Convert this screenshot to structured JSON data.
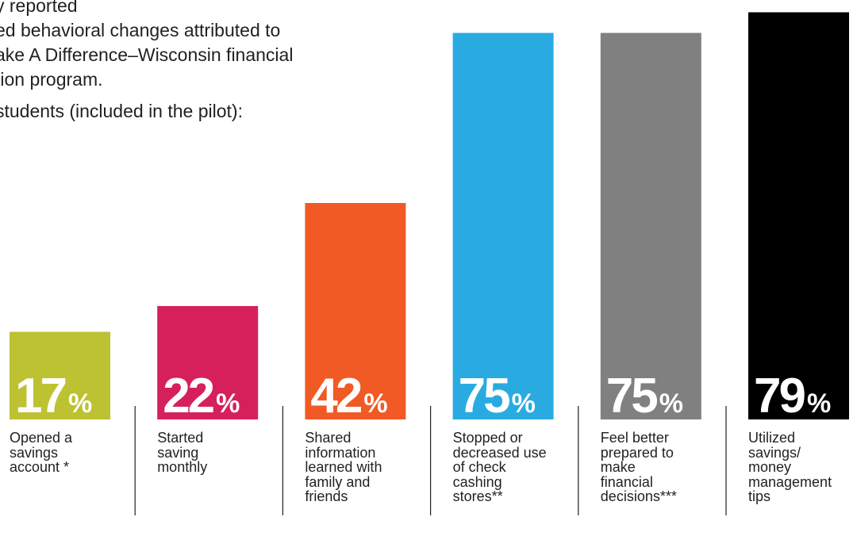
{
  "intro": {
    "heading_lines": [
      "y reported",
      "ed behavioral changes attributed to",
      "ake A Difference–Wisconsin financial",
      "tion program."
    ],
    "subheading": "students (included in the pilot):"
  },
  "chart_data": {
    "type": "bar",
    "title": "",
    "xlabel": "",
    "ylabel": "",
    "ylim": [
      0,
      80
    ],
    "grid": false,
    "value_suffix": "%",
    "categories": [
      "Opened a\nsavings\naccount *",
      "Started\nsaving\nmonthly",
      "Shared\ninformation\nlearned with\nfamily and\nfriends",
      "Stopped or\ndecreased use\nof check\ncashing\nstores**",
      "Feel better\nprepared to\nmake\nfinancial\ndecisions***",
      "Utilized\nsavings/\nmoney\nmanagement\ntips"
    ],
    "values": [
      17,
      22,
      42,
      75,
      75,
      79
    ],
    "value_labels": [
      "17",
      "22",
      "42",
      "75",
      "75",
      "79"
    ],
    "colors": [
      "#bdc232",
      "#d6205c",
      "#f15a24",
      "#29abe2",
      "#808080",
      "#000000"
    ]
  }
}
